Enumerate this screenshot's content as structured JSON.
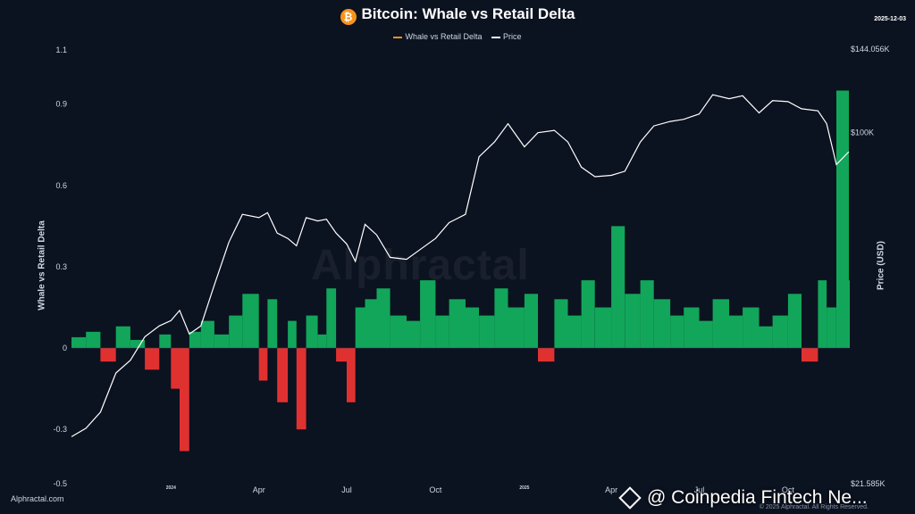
{
  "header": {
    "title": "Bitcoin: Whale vs Retail Delta",
    "coin_symbol": "₿",
    "date_stamp": "2025-12-03"
  },
  "legend": {
    "delta_label": "Whale vs Retail Delta",
    "price_label": "Price"
  },
  "footer": {
    "source": "Alphractal.com",
    "copyright": "© 2025 Alphractal. All Rights Reserved.",
    "watermark_text": "@ Coinpedia Fintech Ne...",
    "logo_text": "Alphractal"
  },
  "colors": {
    "positive": "#12a65a",
    "negative": "#e03131",
    "price_line": "#ffffff",
    "legend_delta": "#f7931a"
  },
  "chart_data": {
    "type": "area",
    "ylabel_left": "Whale vs Retail Delta",
    "ylabel_right": "Price (USD)",
    "left_ticks": [
      "1.1",
      "0.9",
      "0.6",
      "0.3",
      "0",
      "-0.3",
      "-0.5"
    ],
    "left_tick_values": [
      1.1,
      0.9,
      0.6,
      0.3,
      0,
      -0.3,
      -0.5
    ],
    "right_ticks": [
      "$144.056K",
      "$100K",
      "$21.585K"
    ],
    "right_tick_values": [
      144056,
      100000,
      21585
    ],
    "price_scale": "log",
    "left_range": [
      -0.5,
      1.1
    ],
    "right_range": [
      21585,
      144056
    ],
    "x_ticks": [
      "2024",
      "Apr",
      "Jul",
      "Oct",
      "2025",
      "Apr",
      "Jul",
      "Oct"
    ],
    "x_tick_positions": [
      "2024-01-01",
      "2024-04-01",
      "2024-07-01",
      "2024-10-01",
      "2025-01-01",
      "2025-04-01",
      "2025-07-01",
      "2025-10-01"
    ],
    "x_range": [
      "2023-09-20",
      "2025-12-03"
    ],
    "delta_series": {
      "name": "Whale vs Retail Delta",
      "x": [
        "2023-09-20",
        "2023-10-05",
        "2023-10-20",
        "2023-11-05",
        "2023-11-20",
        "2023-12-05",
        "2023-12-20",
        "2024-01-01",
        "2024-01-10",
        "2024-01-20",
        "2024-02-01",
        "2024-02-15",
        "2024-03-01",
        "2024-03-15",
        "2024-04-01",
        "2024-04-10",
        "2024-04-20",
        "2024-05-01",
        "2024-05-10",
        "2024-05-20",
        "2024-06-01",
        "2024-06-10",
        "2024-06-20",
        "2024-07-01",
        "2024-07-10",
        "2024-07-20",
        "2024-08-01",
        "2024-08-15",
        "2024-09-01",
        "2024-09-15",
        "2024-10-01",
        "2024-10-15",
        "2024-11-01",
        "2024-11-15",
        "2024-12-01",
        "2024-12-15",
        "2025-01-01",
        "2025-01-15",
        "2025-02-01",
        "2025-02-15",
        "2025-03-01",
        "2025-03-15",
        "2025-04-01",
        "2025-04-15",
        "2025-05-01",
        "2025-05-15",
        "2025-06-01",
        "2025-06-15",
        "2025-07-01",
        "2025-07-15",
        "2025-08-01",
        "2025-08-15",
        "2025-09-01",
        "2025-09-15",
        "2025-10-01",
        "2025-10-15",
        "2025-11-01",
        "2025-11-10",
        "2025-11-20",
        "2025-12-03"
      ],
      "values": [
        0.04,
        0.06,
        -0.05,
        0.08,
        0.03,
        -0.08,
        0.05,
        -0.15,
        -0.38,
        0.06,
        0.1,
        0.05,
        0.12,
        0.2,
        -0.12,
        0.18,
        -0.2,
        0.1,
        -0.3,
        0.12,
        0.05,
        0.22,
        -0.05,
        -0.2,
        0.15,
        0.18,
        0.22,
        0.12,
        0.1,
        0.25,
        0.12,
        0.18,
        0.15,
        0.12,
        0.22,
        0.15,
        0.2,
        -0.05,
        0.18,
        0.12,
        0.25,
        0.15,
        0.45,
        0.2,
        0.25,
        0.18,
        0.12,
        0.15,
        0.1,
        0.18,
        0.12,
        0.15,
        0.08,
        0.12,
        0.2,
        -0.05,
        0.25,
        0.15,
        0.95,
        0.25
      ]
    },
    "price_series": {
      "name": "Price",
      "x": [
        "2023-09-20",
        "2023-10-05",
        "2023-10-20",
        "2023-11-05",
        "2023-11-20",
        "2023-12-05",
        "2023-12-20",
        "2024-01-01",
        "2024-01-10",
        "2024-01-20",
        "2024-02-01",
        "2024-02-15",
        "2024-03-01",
        "2024-03-15",
        "2024-04-01",
        "2024-04-10",
        "2024-04-20",
        "2024-05-01",
        "2024-05-10",
        "2024-05-20",
        "2024-06-01",
        "2024-06-10",
        "2024-06-20",
        "2024-07-01",
        "2024-07-10",
        "2024-07-20",
        "2024-08-01",
        "2024-08-15",
        "2024-09-01",
        "2024-09-15",
        "2024-10-01",
        "2024-10-15",
        "2024-11-01",
        "2024-11-15",
        "2024-12-01",
        "2024-12-15",
        "2025-01-01",
        "2025-01-15",
        "2025-02-01",
        "2025-02-15",
        "2025-03-01",
        "2025-03-15",
        "2025-04-01",
        "2025-04-15",
        "2025-05-01",
        "2025-05-15",
        "2025-06-01",
        "2025-06-15",
        "2025-07-01",
        "2025-07-15",
        "2025-08-01",
        "2025-08-15",
        "2025-09-01",
        "2025-09-15",
        "2025-10-01",
        "2025-10-15",
        "2025-11-01",
        "2025-11-10",
        "2025-11-20",
        "2025-12-03"
      ],
      "values": [
        26500,
        27500,
        29500,
        35000,
        37000,
        41000,
        43000,
        44000,
        46000,
        41500,
        43000,
        51500,
        62000,
        70000,
        69000,
        70500,
        64500,
        63000,
        61000,
        69000,
        68000,
        68500,
        64500,
        61500,
        57000,
        67000,
        64000,
        58000,
        57500,
        60000,
        63000,
        67500,
        70000,
        90000,
        96000,
        104000,
        94000,
        100000,
        101000,
        96000,
        86000,
        82500,
        83000,
        84500,
        96000,
        103000,
        105000,
        106000,
        108500,
        118000,
        116000,
        117500,
        109000,
        115000,
        114500,
        111000,
        110000,
        104000,
        87000,
        92000
      ]
    }
  }
}
